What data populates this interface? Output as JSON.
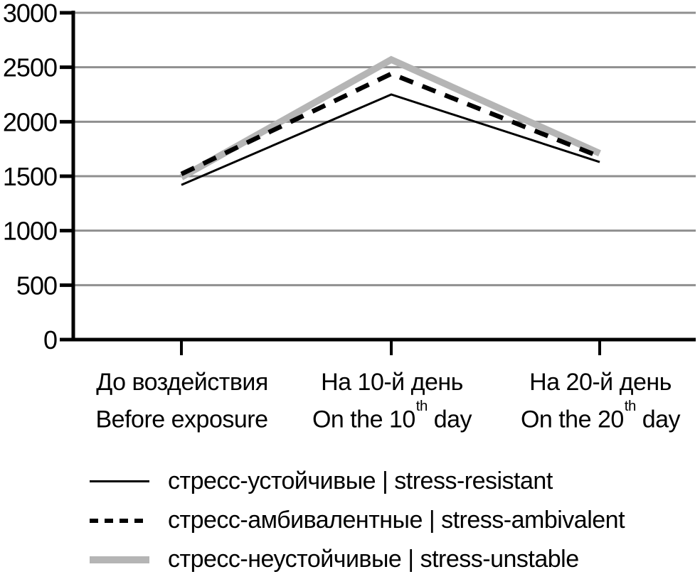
{
  "chart_data": {
    "type": "line",
    "title": "",
    "xlabel": "",
    "ylabel": "",
    "ylim": [
      0,
      3000
    ],
    "y_ticks": [
      0,
      500,
      1000,
      1500,
      2000,
      2500,
      3000
    ],
    "grid": true,
    "legend_position": "bottom",
    "categories": [
      {
        "ru": "До воздействия",
        "en_pre": "Before exposure",
        "en_sup": "",
        "en_post": ""
      },
      {
        "ru": "На 10-й день",
        "en_pre": "On the 10",
        "en_sup": "th",
        "en_post": " day"
      },
      {
        "ru": "На 20-й день",
        "en_pre": "On the 20",
        "en_sup": "th",
        "en_post": " day"
      }
    ],
    "series": [
      {
        "name": "стресс-устойчивые | stress-resistant",
        "style": "thin-solid",
        "color": "#000000",
        "values": [
          1420,
          2250,
          1630
        ]
      },
      {
        "name": "стресс-амбивалентные | stress-ambivalent",
        "style": "dashed",
        "color": "#000000",
        "values": [
          1520,
          2440,
          1680
        ]
      },
      {
        "name": "стресс-неустойчивые | stress-unstable",
        "style": "thick-solid",
        "color": "#b5b5b5",
        "values": [
          1490,
          2570,
          1710
        ]
      }
    ]
  },
  "colors": {
    "background": "#ffffff",
    "axis": "#000000",
    "grid": "#8f8f8f"
  }
}
